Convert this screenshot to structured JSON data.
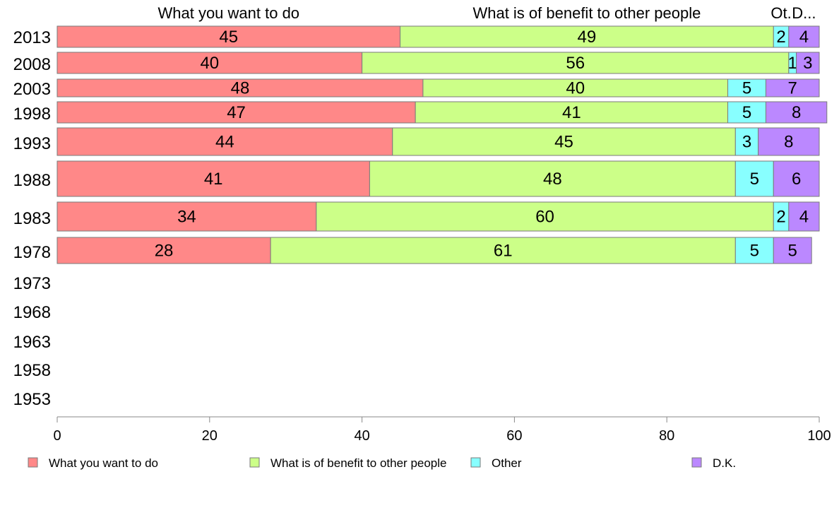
{
  "chart_data": {
    "type": "bar",
    "orientation": "horizontal",
    "stacked": true,
    "categories": [
      "2013",
      "2008",
      "2003",
      "1998",
      "1993",
      "1988",
      "1983",
      "1978",
      "1973",
      "1968",
      "1963",
      "1958",
      "1953"
    ],
    "series": [
      {
        "name": "What you want to do",
        "color": "#ff8888",
        "values": [
          45,
          40,
          48,
          47,
          44,
          41,
          34,
          28,
          null,
          null,
          null,
          null,
          null
        ]
      },
      {
        "name": "What is of benefit to other people",
        "color": "#ccff88",
        "values": [
          49,
          56,
          40,
          41,
          45,
          48,
          60,
          61,
          null,
          null,
          null,
          null,
          null
        ]
      },
      {
        "name": "Other",
        "color": "#88ffff",
        "values": [
          2,
          1,
          5,
          5,
          3,
          5,
          2,
          5,
          null,
          null,
          null,
          null,
          null
        ]
      },
      {
        "name": "D.K.",
        "color": "#bb88ff",
        "values": [
          4,
          3,
          7,
          8,
          8,
          6,
          4,
          5,
          null,
          null,
          null,
          null,
          null
        ]
      }
    ],
    "top_labels": [
      "What you want to do",
      "What is of benefit to other people",
      "Ot.",
      "D..."
    ],
    "xlim": [
      0,
      100
    ],
    "xticks": [
      "0",
      "20",
      "40",
      "60",
      "80",
      "100"
    ],
    "legend_position": "bottom",
    "grid": false
  }
}
